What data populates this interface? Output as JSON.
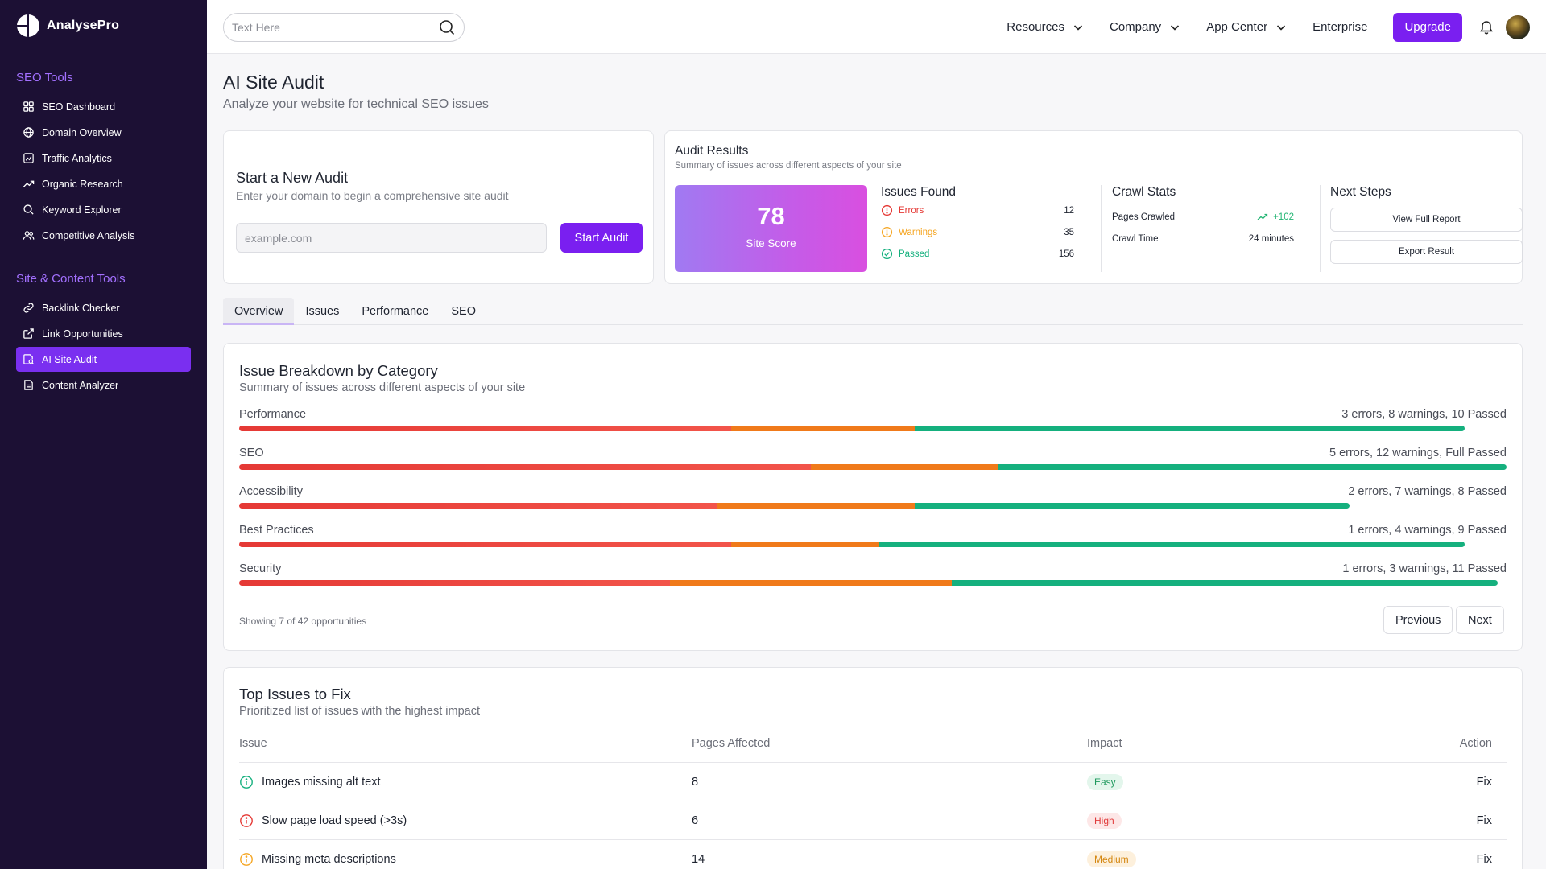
{
  "app": {
    "name": "AnalysePro"
  },
  "colors": {
    "accent": "#7a1ff0",
    "sidebar_bg": "#1c1034",
    "error": "#e53935",
    "warning": "#f07a1a",
    "passed": "#15b07e"
  },
  "sidebar": {
    "sections": [
      {
        "heading": "SEO Tools",
        "items": [
          {
            "label": "SEO Dashboard",
            "icon": "dashboard-icon"
          },
          {
            "label": "Domain Overview",
            "icon": "globe-icon"
          },
          {
            "label": "Traffic Analytics",
            "icon": "chart-icon"
          },
          {
            "label": "Organic Research",
            "icon": "trend-icon"
          },
          {
            "label": "Keyword Explorer",
            "icon": "search-icon"
          },
          {
            "label": "Competitive Analysis",
            "icon": "users-icon"
          }
        ]
      },
      {
        "heading": "Site & Content Tools",
        "items": [
          {
            "label": "Backlink Checker",
            "icon": "link-icon"
          },
          {
            "label": "Link Opportunities",
            "icon": "external-link-icon"
          },
          {
            "label": "AI Site Audit",
            "icon": "audit-icon",
            "active": true
          },
          {
            "label": "Content Analyzer",
            "icon": "document-icon"
          }
        ]
      }
    ]
  },
  "topbar": {
    "search_placeholder": "Text Here",
    "nav": [
      "Resources",
      "Company",
      "App Center"
    ],
    "enterprise": "Enterprise",
    "upgrade": "Upgrade"
  },
  "page": {
    "title": "AI Site Audit",
    "subtitle": "Analyze your website for technical SEO issues"
  },
  "new_audit": {
    "title": "Start a New Audit",
    "subtitle": "Enter your domain to begin a comprehensive site audit",
    "input_placeholder": "example.com",
    "button": "Start Audit"
  },
  "audit_results": {
    "title": "Audit Results",
    "subtitle": "Summary of issues across different aspects of your site",
    "score": "78",
    "score_label": "Site Score",
    "issues_title": "Issues Found",
    "issues": [
      {
        "label": "Errors",
        "count": "12",
        "color": "#e53935"
      },
      {
        "label": "Warnings",
        "count": "35",
        "color": "#f5a623"
      },
      {
        "label": "Passed",
        "count": "156",
        "color": "#15b07e"
      }
    ],
    "crawl_title": "Crawl Stats",
    "pages_crawled_label": "Pages Crawled",
    "pages_crawled_value": "+102",
    "crawl_time_label": "Crawl Time",
    "crawl_time_value": "24 minutes",
    "next_title": "Next Steps",
    "view_report": "View Full Report",
    "export": "Export Result"
  },
  "tabs": [
    "Overview",
    "Issues",
    "Performance",
    "SEO"
  ],
  "breakdown": {
    "title": "Issue Breakdown by Category",
    "subtitle": "Summary of issues across different aspects of your site",
    "categories": [
      {
        "name": "Performance",
        "summary": "3 errors, 8 warnings, 10 Passed",
        "error_pct": 38.8,
        "warning_pct": 14.5,
        "passed_pct": 43.4
      },
      {
        "name": "SEO",
        "summary": "5 errors, 12 warnings, Full Passed",
        "error_pct": 45.1,
        "warning_pct": 14.8,
        "passed_pct": 40.1
      },
      {
        "name": "Accessibility",
        "summary": "2 errors, 7 warnings, 8 Passed",
        "error_pct": 37.7,
        "warning_pct": 15.6,
        "passed_pct": 34.3
      },
      {
        "name": "Best Practices",
        "summary": "1 errors, 4 warnings, 9 Passed",
        "error_pct": 38.8,
        "warning_pct": 11.7,
        "passed_pct": 46.2
      },
      {
        "name": "Security",
        "summary": "1 errors, 3 warnings, 11 Passed",
        "error_pct": 34.0,
        "warning_pct": 22.2,
        "passed_pct": 43.1
      }
    ],
    "showing": "Showing 7 of 42 opportunities",
    "previous": "Previous",
    "next": "Next"
  },
  "top_issues": {
    "title": "Top Issues to Fix",
    "subtitle": "Prioritized list of issues with the highest impact",
    "columns": [
      "Issue",
      "Pages Affected",
      "Impact",
      "Action"
    ],
    "rows": [
      {
        "issue": "Images missing alt text",
        "pages": "8",
        "impact": "Easy",
        "action": "Fix",
        "icon_color": "#15b07e",
        "badge": "easy"
      },
      {
        "issue": "Slow page load speed (>3s)",
        "pages": "6",
        "impact": "High",
        "action": "Fix",
        "icon_color": "#e53935",
        "badge": "high"
      },
      {
        "issue": "Missing meta descriptions",
        "pages": "14",
        "impact": "Medium",
        "action": "Fix",
        "icon_color": "#f5a623",
        "badge": "medium"
      }
    ]
  }
}
